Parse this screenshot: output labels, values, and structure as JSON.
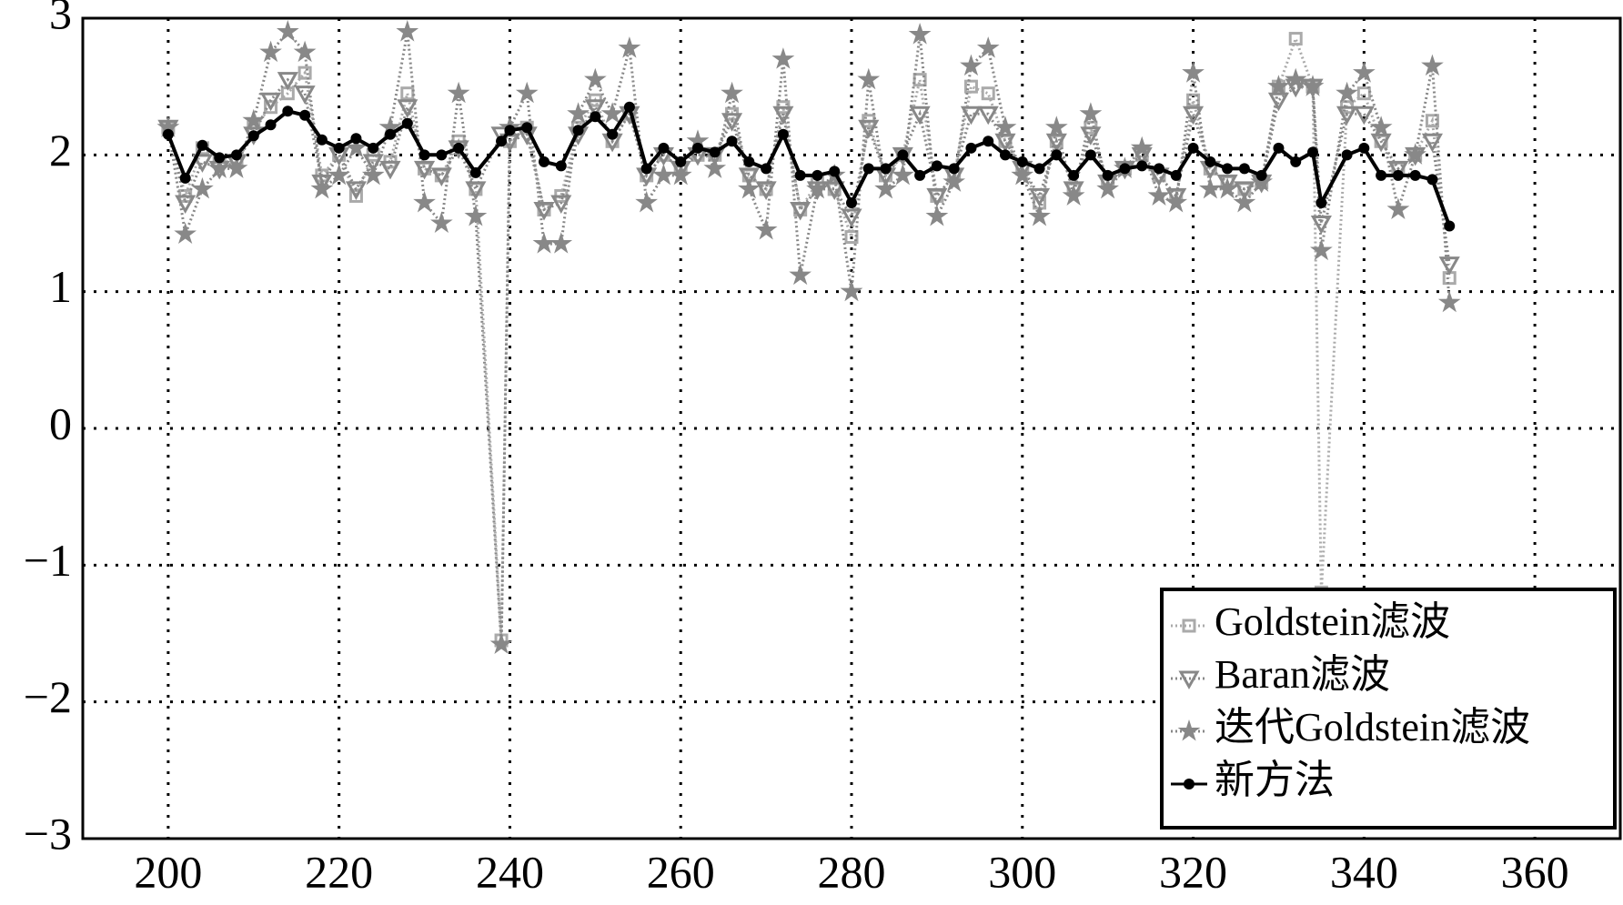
{
  "chart_data": {
    "type": "line",
    "x": [
      200,
      202,
      204,
      206,
      208,
      210,
      212,
      214,
      216,
      218,
      220,
      222,
      224,
      226,
      228,
      230,
      232,
      234,
      236,
      239,
      240,
      242,
      244,
      246,
      248,
      250,
      252,
      254,
      256,
      258,
      260,
      262,
      264,
      266,
      268,
      270,
      272,
      274,
      276,
      278,
      280,
      282,
      284,
      286,
      288,
      290,
      292,
      294,
      296,
      298,
      300,
      302,
      304,
      306,
      308,
      310,
      312,
      314,
      316,
      318,
      320,
      322,
      324,
      326,
      328,
      330,
      332,
      334,
      335,
      338,
      340,
      342,
      344,
      346,
      348,
      350
    ],
    "series": [
      {
        "name": "Goldstein滤波",
        "color": "#aaaaaa",
        "marker": "square",
        "linestyle": "dotted",
        "values": [
          2.2,
          1.7,
          2.05,
          1.95,
          1.95,
          2.2,
          2.35,
          2.45,
          2.6,
          1.85,
          2.0,
          1.7,
          2.0,
          1.95,
          2.45,
          1.9,
          1.85,
          2.1,
          1.75,
          -1.55,
          2.1,
          2.2,
          1.6,
          1.7,
          2.2,
          2.4,
          2.1,
          2.3,
          1.85,
          2.0,
          1.9,
          2.0,
          2.0,
          2.3,
          1.85,
          1.75,
          2.35,
          1.6,
          1.8,
          1.75,
          1.4,
          2.25,
          1.85,
          2.0,
          2.55,
          1.7,
          1.85,
          2.5,
          2.45,
          2.1,
          1.9,
          1.65,
          2.1,
          1.75,
          2.2,
          1.8,
          1.9,
          2.0,
          1.85,
          1.7,
          2.4,
          1.9,
          1.8,
          1.75,
          1.8,
          2.5,
          2.85,
          2.5,
          -1.2,
          2.35,
          2.45,
          2.1,
          1.9,
          2.0,
          2.25,
          1.1
        ]
      },
      {
        "name": "Baran滤波",
        "color": "#888888",
        "marker": "triangle",
        "linestyle": "dotted",
        "values": [
          2.2,
          1.65,
          1.95,
          1.9,
          1.95,
          2.15,
          2.4,
          2.55,
          2.45,
          1.8,
          2.0,
          1.75,
          1.95,
          1.9,
          2.35,
          1.9,
          1.85,
          2.05,
          1.75,
          2.15,
          2.1,
          2.15,
          1.6,
          1.65,
          2.15,
          2.35,
          2.1,
          2.3,
          1.85,
          2.0,
          1.9,
          2.0,
          2.0,
          2.25,
          1.85,
          1.75,
          2.3,
          1.6,
          1.75,
          1.75,
          1.55,
          2.2,
          1.85,
          2.0,
          2.3,
          1.7,
          1.85,
          2.3,
          2.3,
          2.1,
          1.9,
          1.7,
          2.1,
          1.75,
          2.15,
          1.8,
          1.9,
          2.0,
          1.85,
          1.7,
          2.3,
          1.9,
          1.8,
          1.75,
          1.8,
          2.4,
          2.5,
          2.5,
          1.5,
          2.3,
          2.3,
          2.1,
          1.9,
          2.0,
          2.1,
          1.2
        ]
      },
      {
        "name": "迭代Goldstein滤波",
        "color": "#888888",
        "marker": "star",
        "linestyle": "dotted",
        "values": [
          2.2,
          1.42,
          1.75,
          1.9,
          1.9,
          2.25,
          2.75,
          2.9,
          2.75,
          1.75,
          1.85,
          2.05,
          1.85,
          2.2,
          2.9,
          1.65,
          1.5,
          2.45,
          1.55,
          -1.58,
          2.2,
          2.45,
          1.35,
          1.35,
          2.3,
          2.55,
          2.3,
          2.78,
          1.65,
          1.85,
          1.85,
          2.1,
          1.9,
          2.45,
          1.75,
          1.45,
          2.7,
          1.12,
          1.75,
          1.85,
          1.0,
          2.55,
          1.75,
          1.85,
          2.88,
          1.55,
          1.8,
          2.65,
          2.78,
          2.2,
          1.85,
          1.55,
          2.2,
          1.7,
          2.3,
          1.75,
          1.9,
          2.05,
          1.7,
          1.65,
          2.6,
          1.75,
          1.75,
          1.65,
          1.8,
          2.5,
          2.55,
          2.5,
          1.3,
          2.45,
          2.6,
          2.2,
          1.6,
          2.0,
          2.65,
          0.92
        ]
      },
      {
        "name": "新方法",
        "color": "#000000",
        "marker": "dot",
        "linestyle": "solid",
        "values": [
          2.15,
          1.83,
          2.07,
          1.98,
          2.0,
          2.14,
          2.22,
          2.32,
          2.29,
          2.11,
          2.05,
          2.12,
          2.05,
          2.15,
          2.23,
          2.0,
          2.0,
          2.05,
          1.87,
          2.1,
          2.18,
          2.2,
          1.95,
          1.92,
          2.18,
          2.28,
          2.15,
          2.35,
          1.9,
          2.05,
          1.95,
          2.05,
          2.02,
          2.1,
          1.95,
          1.9,
          2.15,
          1.85,
          1.85,
          1.88,
          1.65,
          1.9,
          1.9,
          2.0,
          1.85,
          1.92,
          1.9,
          2.05,
          2.1,
          2.0,
          1.95,
          1.9,
          2.0,
          1.85,
          2.0,
          1.85,
          1.9,
          1.92,
          1.9,
          1.85,
          2.05,
          1.95,
          1.9,
          1.9,
          1.85,
          2.05,
          1.95,
          2.02,
          1.65,
          2.0,
          2.05,
          1.85,
          1.85,
          1.85,
          1.82,
          1.48
        ]
      }
    ],
    "xlim": [
      190,
      370
    ],
    "xticks": [
      200,
      220,
      240,
      260,
      280,
      300,
      320,
      340,
      360
    ],
    "ylim": [
      -3,
      3
    ],
    "yticks": [
      {
        "value": -3,
        "label": "−3"
      },
      {
        "value": -2,
        "label": "−2"
      },
      {
        "value": -1,
        "label": "−1"
      },
      0,
      1,
      2,
      3
    ],
    "grid": true,
    "legend": "lower right"
  }
}
